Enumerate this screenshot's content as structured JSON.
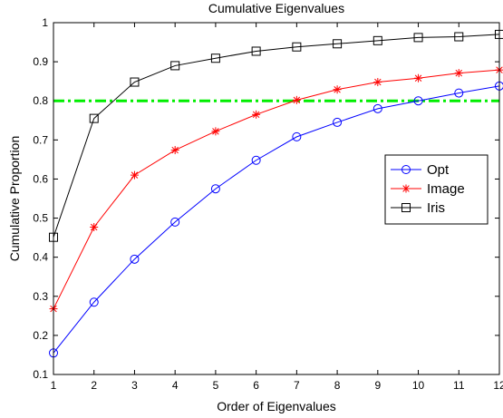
{
  "chart_data": {
    "type": "line",
    "title": "Cumulative Eigenvalues",
    "xlabel": "Order of Eigenvalues",
    "ylabel": "Cumulative Proportion",
    "xlim": [
      1,
      12
    ],
    "ylim": [
      0.1,
      1
    ],
    "xticks": [
      1,
      2,
      3,
      4,
      5,
      6,
      7,
      8,
      9,
      10,
      11,
      12
    ],
    "yticks": [
      0.1,
      0.2,
      0.3,
      0.4,
      0.5,
      0.6,
      0.7,
      0.8,
      0.9,
      1
    ],
    "ytick_labels": [
      "0.1",
      "0.2",
      "0.3",
      "0.4",
      "0.5",
      "0.6",
      "0.7",
      "0.8",
      "0.9",
      "1"
    ],
    "grid": false,
    "legend_position": "right",
    "x": [
      1,
      2,
      3,
      4,
      5,
      6,
      7,
      8,
      9,
      10,
      11,
      12
    ],
    "series": [
      {
        "name": "Opt",
        "color": "#0000ff",
        "marker": "circle",
        "values": [
          0.155,
          0.285,
          0.395,
          0.49,
          0.575,
          0.648,
          0.708,
          0.745,
          0.78,
          0.8,
          0.82,
          0.838
        ]
      },
      {
        "name": "Image",
        "color": "#ff0000",
        "marker": "star",
        "values": [
          0.268,
          0.477,
          0.61,
          0.674,
          0.722,
          0.765,
          0.802,
          0.829,
          0.848,
          0.858,
          0.871,
          0.879
        ]
      },
      {
        "name": "Iris",
        "color": "#000000",
        "marker": "square",
        "values": [
          0.451,
          0.755,
          0.848,
          0.89,
          0.909,
          0.927,
          0.938,
          0.946,
          0.954,
          0.962,
          0.964,
          0.97
        ]
      }
    ],
    "reference_line": {
      "y": 0.8,
      "color": "#00ee00",
      "style": "dash-dot"
    }
  }
}
